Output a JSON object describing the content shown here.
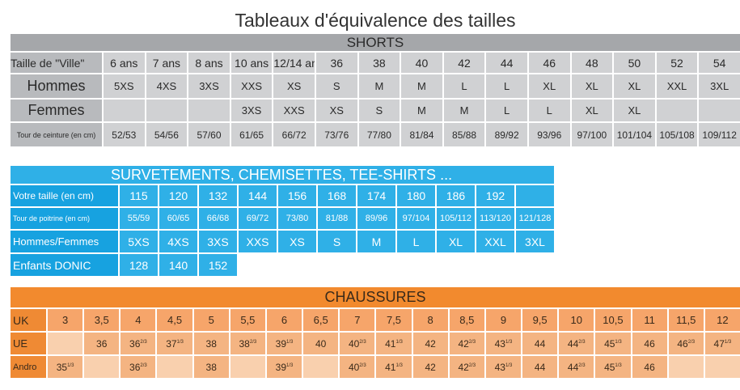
{
  "main_title": "Tableaux d'équivalence des tailles",
  "colors": {
    "shorts_header": "#a5a7aa",
    "shorts_cell": "#d0d1d3",
    "surv": "#2fb0e7",
    "shoes_header": "#f28a2e",
    "shoes_cell": "#f4b482"
  },
  "shorts": {
    "title": "SHORTS",
    "row_labels": {
      "taille": "Taille de \"Ville\"",
      "hommes": "Hommes",
      "femmes": "Femmes",
      "ceinture": "Tour de ceinture (en cm)"
    },
    "taille": [
      "6 ans",
      "7 ans",
      "8 ans",
      "10 ans",
      "12/14 ans",
      "36",
      "38",
      "40",
      "42",
      "44",
      "46",
      "48",
      "50",
      "52",
      "54"
    ],
    "hommes": [
      "5XS",
      "4XS",
      "3XS",
      "XXS",
      "XS",
      "S",
      "M",
      "M",
      "L",
      "L",
      "XL",
      "XL",
      "XL",
      "XXL",
      "3XL"
    ],
    "femmes": [
      "",
      "",
      "",
      "3XS",
      "XXS",
      "XS",
      "S",
      "M",
      "M",
      "L",
      "L",
      "XL",
      "XL",
      "",
      ""
    ],
    "ceinture": [
      "52/53",
      "54/56",
      "57/60",
      "61/65",
      "66/72",
      "73/76",
      "77/80",
      "81/84",
      "85/88",
      "89/92",
      "93/96",
      "97/100",
      "101/104",
      "105/108",
      "109/112"
    ]
  },
  "surv": {
    "title": "SURVETEMENTS, CHEMISETTES, TEE-SHIRTS ...",
    "row_labels": {
      "taille": "Votre taille (en cm)",
      "poitrine": "Tour de poitrine (en cm)",
      "hf": "Hommes/Femmes",
      "enfants": "Enfants DONIC"
    },
    "taille": [
      "115",
      "120",
      "132",
      "144",
      "156",
      "168",
      "174",
      "180",
      "186",
      "192",
      ""
    ],
    "poitrine": [
      "55/59",
      "60/65",
      "66/68",
      "69/72",
      "73/80",
      "81/88",
      "89/96",
      "97/104",
      "105/112",
      "113/120",
      "121/128"
    ],
    "hf": [
      "5XS",
      "4XS",
      "3XS",
      "XXS",
      "XS",
      "S",
      "M",
      "L",
      "XL",
      "XXL",
      "3XL"
    ],
    "enfants": [
      "128",
      "140",
      "152"
    ]
  },
  "shoes": {
    "title": "CHAUSSURES",
    "row_labels": {
      "uk": "UK",
      "ue": "UE",
      "andro": "Andro"
    },
    "uk": [
      "3",
      "3,5",
      "4",
      "4,5",
      "5",
      "5,5",
      "6",
      "6,5",
      "7",
      "7,5",
      "8",
      "8,5",
      "9",
      "9,5",
      "10",
      "10,5",
      "11",
      "11,5",
      "12"
    ],
    "ue": [
      {
        "base": "",
        "sup": ""
      },
      {
        "base": "36",
        "sup": ""
      },
      {
        "base": "36",
        "sup": "2/3"
      },
      {
        "base": "37",
        "sup": "1/3"
      },
      {
        "base": "38",
        "sup": ""
      },
      {
        "base": "38",
        "sup": "2/3"
      },
      {
        "base": "39",
        "sup": "1/3"
      },
      {
        "base": "40",
        "sup": ""
      },
      {
        "base": "40",
        "sup": "2/3"
      },
      {
        "base": "41",
        "sup": "1/3"
      },
      {
        "base": "42",
        "sup": ""
      },
      {
        "base": "42",
        "sup": "2/3"
      },
      {
        "base": "43",
        "sup": "1/3"
      },
      {
        "base": "44",
        "sup": ""
      },
      {
        "base": "44",
        "sup": "2/3"
      },
      {
        "base": "45",
        "sup": "1/3"
      },
      {
        "base": "46",
        "sup": ""
      },
      {
        "base": "46",
        "sup": "2/3"
      },
      {
        "base": "47",
        "sup": "1/3"
      }
    ],
    "andro": [
      {
        "base": "35",
        "sup": "1/3"
      },
      {
        "base": "",
        "sup": ""
      },
      {
        "base": "36",
        "sup": "2/3"
      },
      {
        "base": "",
        "sup": ""
      },
      {
        "base": "38",
        "sup": ""
      },
      {
        "base": "",
        "sup": ""
      },
      {
        "base": "39",
        "sup": "1/3"
      },
      {
        "base": "",
        "sup": ""
      },
      {
        "base": "40",
        "sup": "2/3"
      },
      {
        "base": "41",
        "sup": "1/3"
      },
      {
        "base": "42",
        "sup": ""
      },
      {
        "base": "42",
        "sup": "2/3"
      },
      {
        "base": "43",
        "sup": "1/3"
      },
      {
        "base": "44",
        "sup": ""
      },
      {
        "base": "44",
        "sup": "2/3"
      },
      {
        "base": "45",
        "sup": "1/3"
      },
      {
        "base": "46",
        "sup": ""
      },
      {
        "base": "",
        "sup": ""
      },
      {
        "base": "",
        "sup": ""
      }
    ]
  }
}
